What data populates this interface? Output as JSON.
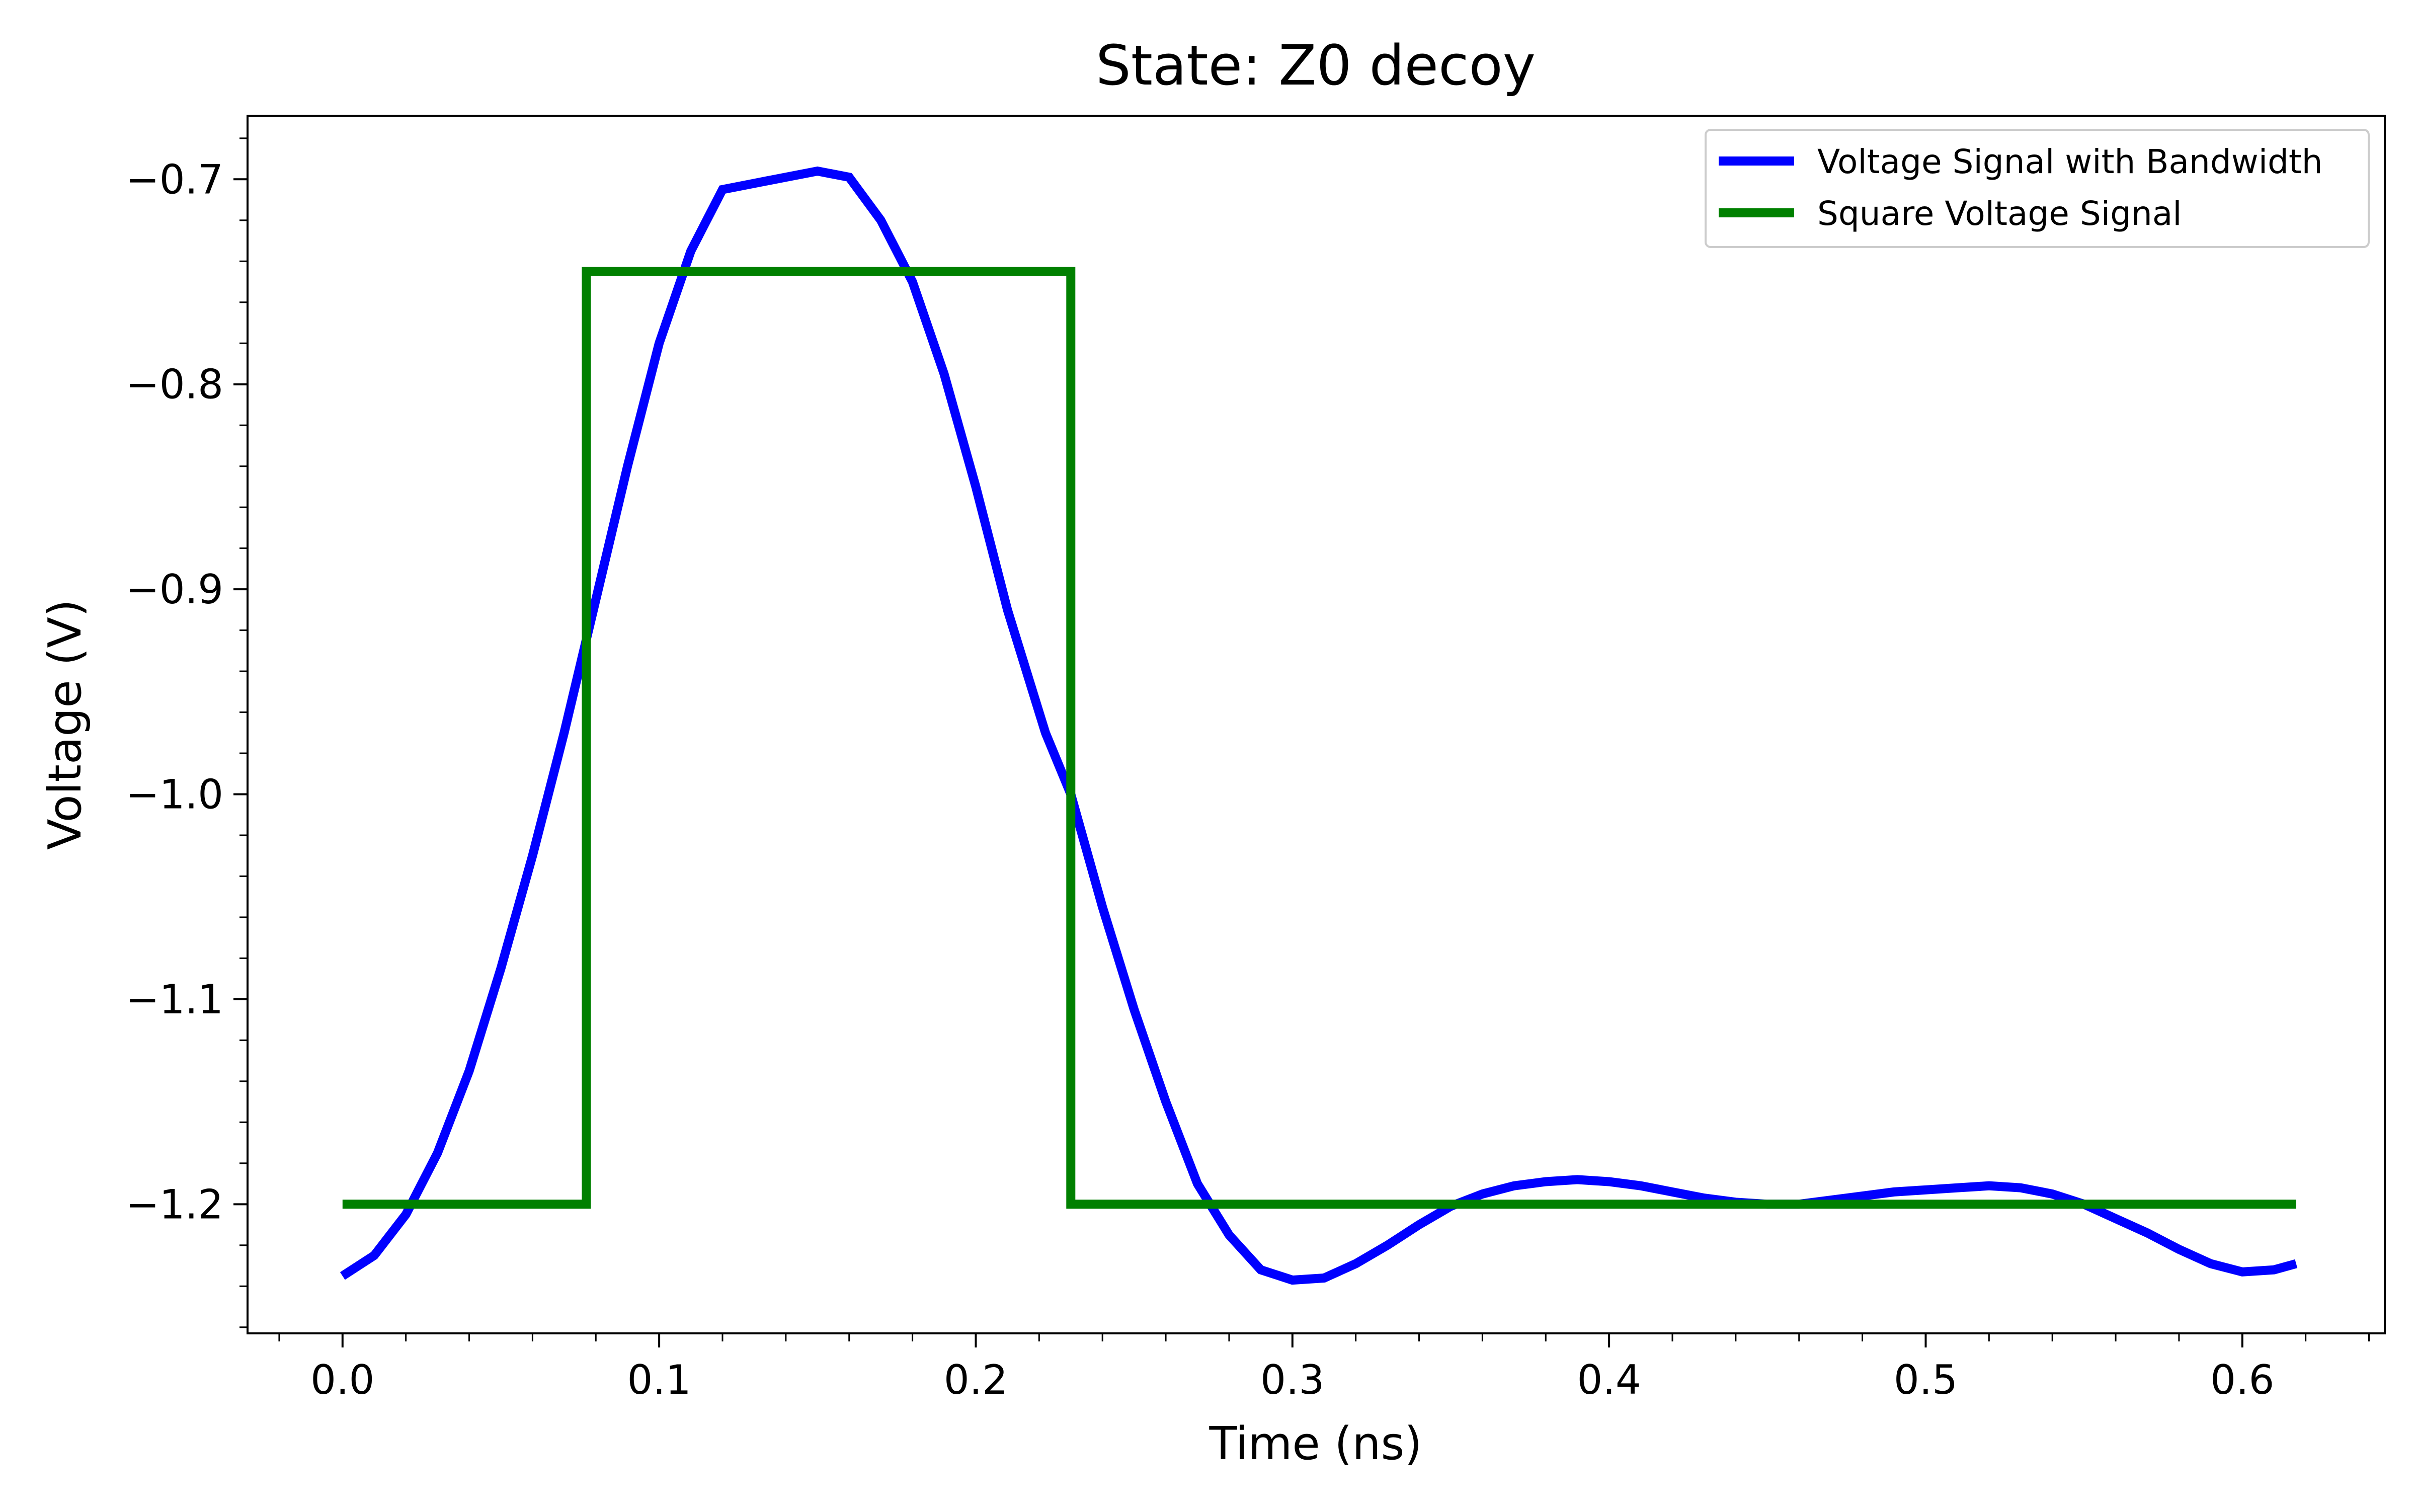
{
  "chart_data": {
    "type": "line",
    "title": "State: Z0 decoy",
    "xlabel": "Time (ns)",
    "ylabel": "Voltage (V)",
    "xlim": [
      -0.03,
      0.645
    ],
    "ylim": [
      -1.263,
      -0.669
    ],
    "xticks": [
      0.0,
      0.1,
      0.2,
      0.3,
      0.4,
      0.5,
      0.6
    ],
    "xtick_labels": [
      "0.0",
      "0.1",
      "0.2",
      "0.3",
      "0.4",
      "0.5",
      "0.6"
    ],
    "yticks": [
      -0.7,
      -0.8,
      -0.9,
      -1.0,
      -1.1,
      -1.2
    ],
    "ytick_labels": [
      "−0.7",
      "−0.8",
      "−0.9",
      "−1.0",
      "−1.1",
      "−1.2"
    ],
    "x_minor_step": 0.02,
    "y_minor_step": 0.02,
    "grid": false,
    "legend_position": "top-right",
    "series": [
      {
        "name": "Voltage Signal with Bandwidth",
        "color": "#0000ff",
        "x": [
          0.0,
          0.01,
          0.02,
          0.03,
          0.04,
          0.05,
          0.06,
          0.07,
          0.08,
          0.09,
          0.1,
          0.11,
          0.12,
          0.13,
          0.14,
          0.15,
          0.16,
          0.17,
          0.18,
          0.19,
          0.2,
          0.21,
          0.22,
          0.222,
          0.23,
          0.24,
          0.25,
          0.26,
          0.27,
          0.28,
          0.29,
          0.3,
          0.31,
          0.32,
          0.33,
          0.34,
          0.35,
          0.36,
          0.37,
          0.38,
          0.39,
          0.4,
          0.41,
          0.42,
          0.43,
          0.44,
          0.45,
          0.46,
          0.47,
          0.48,
          0.49,
          0.5,
          0.51,
          0.52,
          0.53,
          0.54,
          0.55,
          0.56,
          0.57,
          0.58,
          0.59,
          0.6,
          0.61,
          0.617
        ],
        "y": [
          -1.235,
          -1.225,
          -1.205,
          -1.175,
          -1.135,
          -1.085,
          -1.03,
          -0.97,
          -0.905,
          -0.84,
          -0.78,
          -0.735,
          -0.705,
          -0.702,
          -0.699,
          -0.696,
          -0.699,
          -0.72,
          -0.75,
          -0.795,
          -0.85,
          -0.91,
          -0.96,
          -0.97,
          -1.0,
          -1.055,
          -1.105,
          -1.15,
          -1.19,
          -1.215,
          -1.232,
          -1.237,
          -1.236,
          -1.229,
          -1.22,
          -1.21,
          -1.201,
          -1.195,
          -1.191,
          -1.189,
          -1.188,
          -1.189,
          -1.191,
          -1.194,
          -1.197,
          -1.199,
          -1.2,
          -1.2,
          -1.198,
          -1.196,
          -1.194,
          -1.193,
          -1.192,
          -1.191,
          -1.192,
          -1.195,
          -1.2,
          -1.207,
          -1.214,
          -1.222,
          -1.229,
          -1.233,
          -1.232,
          -1.229
        ]
      },
      {
        "name": "Square Voltage Signal",
        "color": "#008000",
        "x": [
          0.0,
          0.077,
          0.077,
          0.23,
          0.23,
          0.617
        ],
        "y": [
          -1.2,
          -1.2,
          -0.745,
          -0.745,
          -1.2,
          -1.2
        ]
      }
    ]
  }
}
